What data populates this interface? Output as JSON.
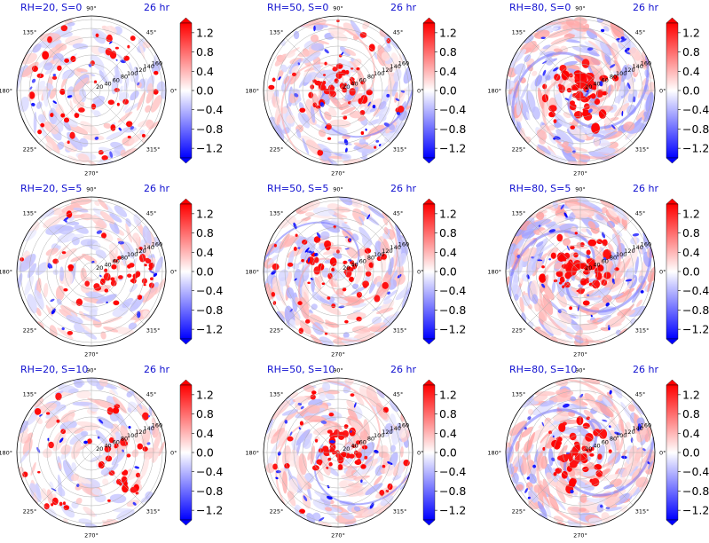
{
  "chart_data": {
    "type": "heatmap",
    "layout": {
      "rows": 3,
      "cols": 3
    },
    "time_label": "26 hr",
    "theta_ticks": [
      "0°",
      "45°",
      "90°",
      "135°",
      "180°",
      "225°",
      "270°",
      "315°"
    ],
    "r_ticks": [
      "20",
      "40",
      "60",
      "80",
      "100",
      "120",
      "140",
      "160"
    ],
    "colorbar": {
      "ticks": [
        "1.2",
        "0.8",
        "0.4",
        "0.0",
        "−0.4",
        "−0.8",
        "−1.2"
      ],
      "range": [
        -1.4,
        1.4
      ],
      "colors": {
        "low": "#0000ff",
        "mid": "#ffffff",
        "high": "#ff0000"
      }
    },
    "panels": [
      {
        "title": "RH=20, S=0",
        "rh": 20,
        "shear": 0
      },
      {
        "title": "RH=50, S=0",
        "rh": 50,
        "shear": 0
      },
      {
        "title": "RH=80, S=0",
        "rh": 80,
        "shear": 0
      },
      {
        "title": "RH=20, S=5",
        "rh": 20,
        "shear": 5
      },
      {
        "title": "RH=50, S=5",
        "rh": 50,
        "shear": 5
      },
      {
        "title": "RH=80, S=5",
        "rh": 80,
        "shear": 5
      },
      {
        "title": "RH=20, S=10",
        "rh": 20,
        "shear": 10
      },
      {
        "title": "RH=50, S=10",
        "rh": 50,
        "shear": 10
      },
      {
        "title": "RH=80, S=10",
        "rh": 80,
        "shear": 10
      }
    ]
  }
}
